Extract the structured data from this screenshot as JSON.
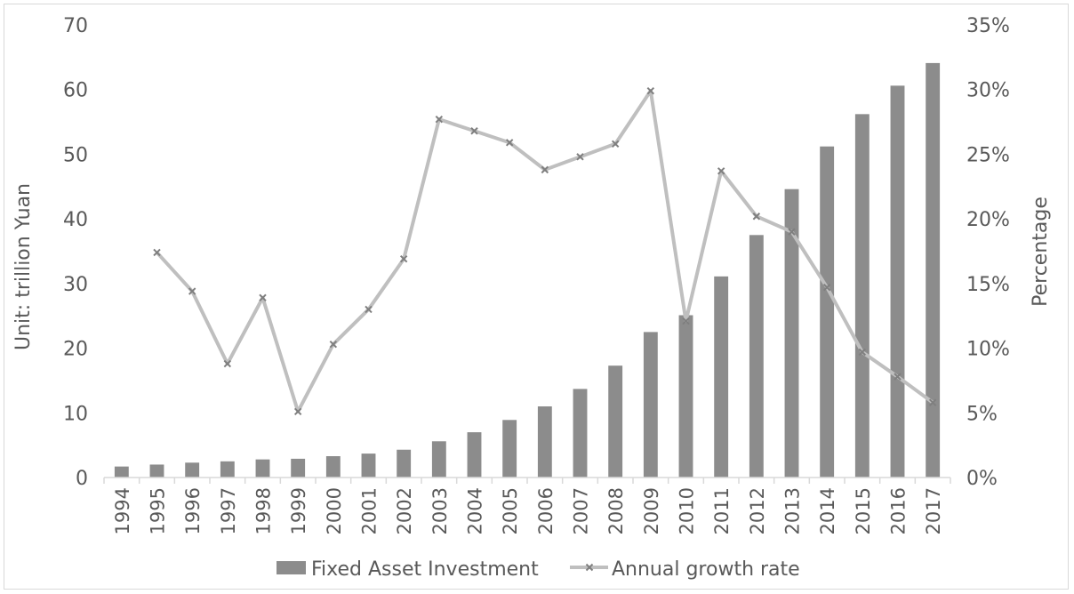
{
  "chart_data": {
    "type": "bar",
    "categories": [
      "1994",
      "1995",
      "1996",
      "1997",
      "1998",
      "1999",
      "2000",
      "2001",
      "2002",
      "2003",
      "2004",
      "2005",
      "2006",
      "2007",
      "2008",
      "2009",
      "2010",
      "2011",
      "2012",
      "2013",
      "2014",
      "2015",
      "2016",
      "2017"
    ],
    "series": [
      {
        "name": "Fixed Asset Investment",
        "type": "bar",
        "axis": "left",
        "color": "#8c8c8c",
        "values": [
          1.7,
          2.0,
          2.3,
          2.5,
          2.8,
          2.9,
          3.3,
          3.7,
          4.3,
          5.6,
          7.0,
          8.9,
          11.0,
          13.7,
          17.3,
          22.5,
          25.1,
          31.1,
          37.5,
          44.6,
          51.2,
          56.2,
          60.6,
          64.1
        ]
      },
      {
        "name": "Annual growth rate",
        "type": "line",
        "axis": "right",
        "color": "#bfbfbf",
        "marker_color": "#7f7f7f",
        "values": [
          null,
          17.4,
          14.4,
          8.8,
          13.9,
          5.1,
          10.3,
          13.0,
          16.9,
          27.7,
          26.8,
          25.9,
          23.8,
          24.8,
          25.8,
          29.9,
          12.1,
          23.7,
          20.2,
          19.0,
          14.7,
          9.7,
          7.8,
          5.8
        ]
      }
    ],
    "y_left": {
      "label": "Unit: trillion Yuan",
      "ylim": [
        0,
        70
      ],
      "ticks": [
        0,
        10,
        20,
        30,
        40,
        50,
        60,
        70
      ],
      "tick_labels": [
        "0",
        "10",
        "20",
        "30",
        "40",
        "50",
        "60",
        "70"
      ]
    },
    "y_right": {
      "label": "Percentage",
      "ylim": [
        0,
        35
      ],
      "ticks": [
        0,
        5,
        10,
        15,
        20,
        25,
        30,
        35
      ],
      "tick_labels": [
        "0%",
        "5%",
        "10%",
        "15%",
        "20%",
        "25%",
        "30%",
        "35%"
      ]
    },
    "xlabel": "",
    "grid": false,
    "legend": {
      "position": "bottom",
      "entries": [
        "Fixed Asset Investment",
        "Annual growth rate"
      ]
    }
  }
}
